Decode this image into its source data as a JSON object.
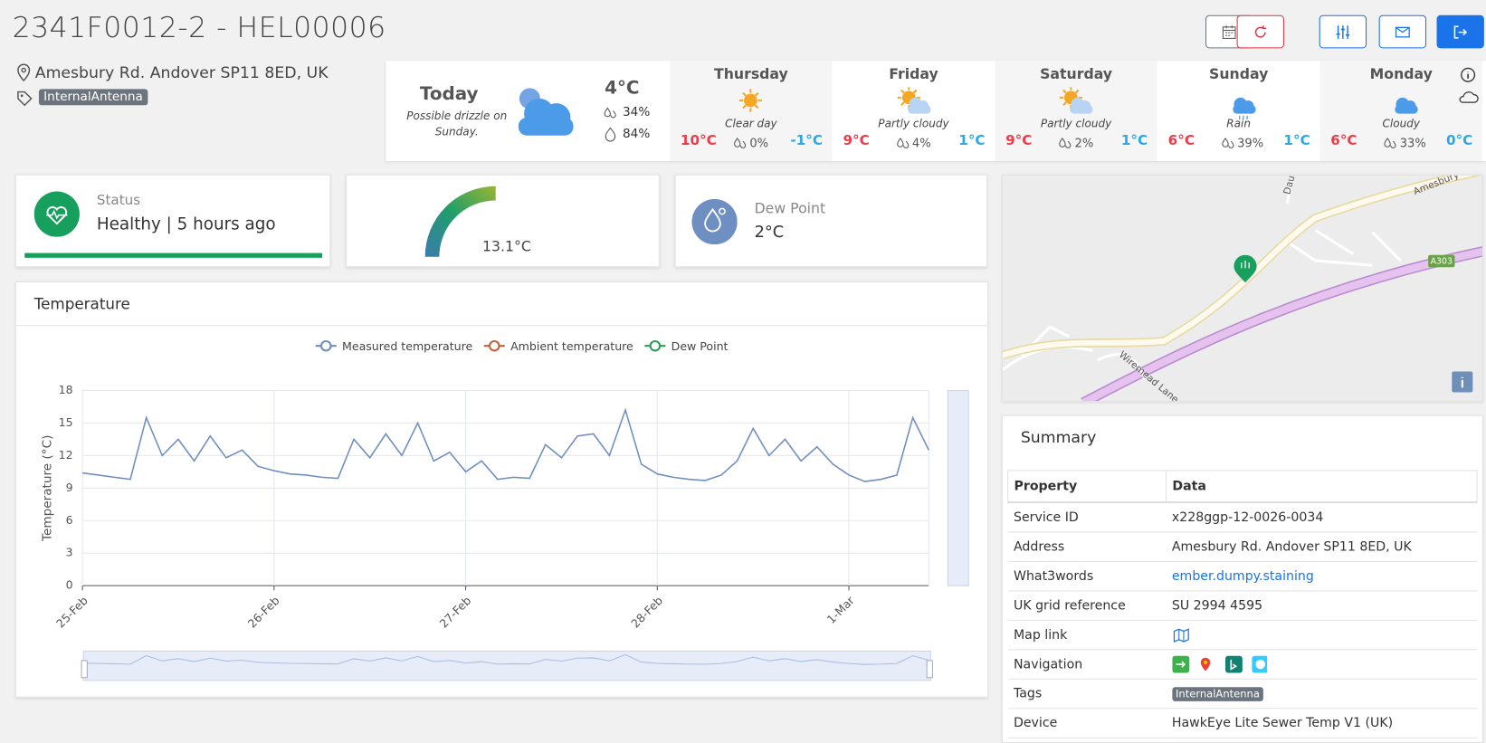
{
  "header": {
    "title": "2341F0012-2 - HEL00006",
    "address": "Amesbury Rd. Andover SP11 8ED, UK",
    "tag": "InternalAntenna"
  },
  "weather": {
    "today": {
      "label": "Today",
      "note": "Possible drizzle on Sunday.",
      "temp": "4°C",
      "precip": "34%",
      "humidity": "84%"
    },
    "days": [
      {
        "day": "Thursday",
        "desc": "Clear day",
        "high": "10°C",
        "precip": "0%",
        "low": "-1°C"
      },
      {
        "day": "Friday",
        "desc": "Partly cloudy",
        "high": "9°C",
        "precip": "4%",
        "low": "1°C"
      },
      {
        "day": "Saturday",
        "desc": "Partly cloudy",
        "high": "9°C",
        "precip": "2%",
        "low": "1°C"
      },
      {
        "day": "Sunday",
        "desc": "Rain",
        "high": "6°C",
        "precip": "39%",
        "low": "1°C"
      },
      {
        "day": "Monday",
        "desc": "Cloudy",
        "high": "6°C",
        "precip": "33%",
        "low": "0°C"
      }
    ]
  },
  "status": {
    "label": "Status",
    "value": "Healthy | 5 hours ago"
  },
  "gauge": {
    "value": "13.1°C"
  },
  "dew_point": {
    "label": "Dew Point",
    "value": "2°C"
  },
  "map": {
    "labels": [
      "Amesbury Road",
      "Daun",
      "A303",
      "Wiremead Lane"
    ]
  },
  "summary": {
    "title": "Summary",
    "columns": [
      "Property",
      "Data"
    ],
    "rows": [
      {
        "property": "Service ID",
        "data": "x228ggp-12-0026-0034"
      },
      {
        "property": "Address",
        "data": "Amesbury Rd. Andover SP11 8ED, UK"
      },
      {
        "property": "What3words",
        "data": "ember.dumpy.staining",
        "link": true
      },
      {
        "property": "UK grid reference",
        "data": "SU 2994 4595"
      },
      {
        "property": "Map link"
      },
      {
        "property": "Navigation"
      },
      {
        "property": "Tags",
        "badge": "InternalAntenna"
      },
      {
        "property": "Device",
        "data": "HawkEye Lite Sewer Temp V1 (UK)"
      }
    ]
  },
  "chart_data": {
    "type": "line",
    "title": "Temperature",
    "y_label": "Temperature (°C)",
    "categories": [
      "25-Feb",
      null,
      null,
      null,
      null,
      null,
      null,
      null,
      null,
      null,
      null,
      null,
      "26-Feb",
      null,
      null,
      null,
      null,
      null,
      null,
      null,
      null,
      null,
      null,
      null,
      "27-Feb",
      null,
      null,
      null,
      null,
      null,
      null,
      null,
      null,
      null,
      null,
      null,
      "28-Feb",
      null,
      null,
      null,
      null,
      null,
      null,
      null,
      null,
      null,
      null,
      null,
      "1-Mar",
      null,
      null,
      null,
      null,
      null
    ],
    "series": [
      {
        "name": "Measured temperature",
        "color": "#6f8fbf",
        "values": [
          10.4,
          10.2,
          10.0,
          9.8,
          15.5,
          12.0,
          13.5,
          11.5,
          13.8,
          11.8,
          12.5,
          11.0,
          10.6,
          10.3,
          10.2,
          10.0,
          9.9,
          13.5,
          11.8,
          14.0,
          12.0,
          15.0,
          11.5,
          12.3,
          10.5,
          11.5,
          9.8,
          10.0,
          9.9,
          13.0,
          11.8,
          13.8,
          14.0,
          12.0,
          16.2,
          11.2,
          10.3,
          10.0,
          9.8,
          9.7,
          10.2,
          11.5,
          14.5,
          12.0,
          13.5,
          11.5,
          12.8,
          11.2,
          10.2,
          9.6,
          9.8,
          10.2,
          15.5,
          12.5
        ]
      },
      {
        "name": "Ambient temperature",
        "color": "#c0623a",
        "values": [
          null,
          null,
          null,
          null,
          null,
          null,
          null,
          null,
          null,
          null,
          null,
          null,
          null,
          null,
          null,
          null,
          null,
          null,
          null,
          null,
          null,
          null,
          null,
          null,
          null,
          null,
          null,
          null,
          null,
          null,
          null,
          null,
          null,
          null,
          null,
          null,
          null,
          null,
          null,
          null,
          null,
          null,
          null,
          null,
          null,
          null,
          null,
          null,
          null,
          null,
          null,
          null,
          null,
          null
        ]
      },
      {
        "name": "Dew Point",
        "color": "#2f9e5c",
        "values": [
          null,
          null,
          null,
          null,
          null,
          null,
          null,
          null,
          null,
          null,
          null,
          null,
          null,
          null,
          null,
          null,
          null,
          null,
          null,
          null,
          null,
          null,
          null,
          null,
          null,
          null,
          null,
          null,
          null,
          null,
          null,
          null,
          null,
          null,
          null,
          null,
          null,
          null,
          null,
          null,
          null,
          null,
          null,
          null,
          null,
          null,
          null,
          null,
          null,
          null,
          null,
          null,
          null,
          null
        ]
      }
    ],
    "ylim": [
      0,
      18
    ],
    "yticks": [
      0,
      3,
      6,
      9,
      12,
      15,
      18
    ],
    "grid": true
  }
}
